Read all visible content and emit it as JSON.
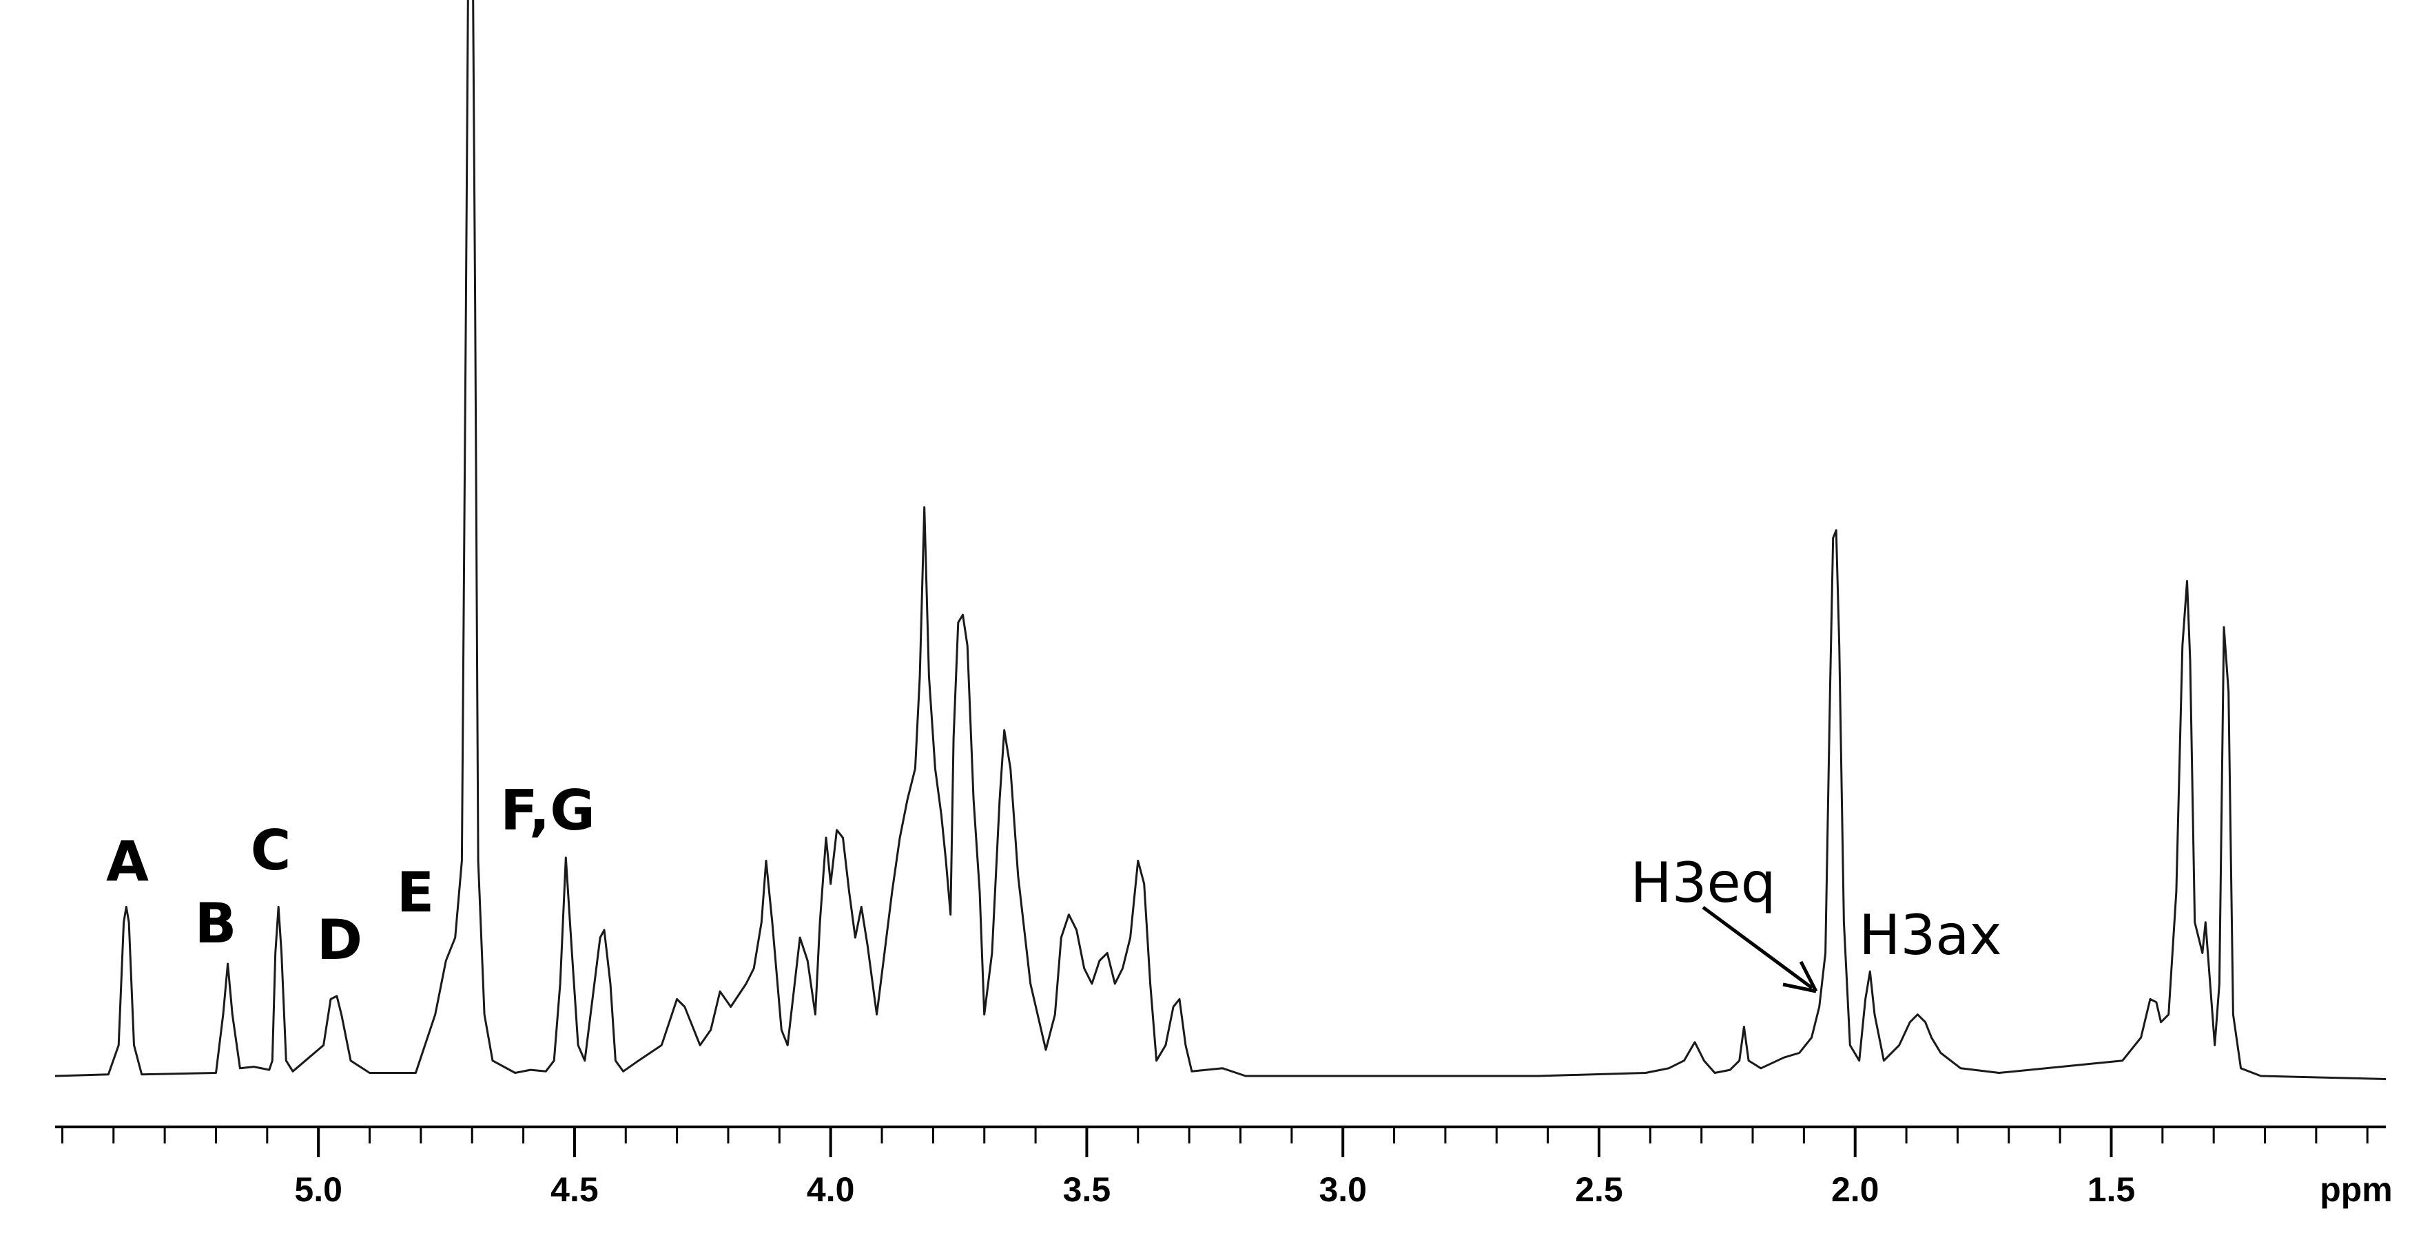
{
  "chart_data": {
    "type": "line",
    "x_label": "ppm",
    "xlim": [
      5.514,
      0.964
    ],
    "ylim": [
      0,
      700
    ],
    "xticks": [
      {
        "value": 5,
        "label": "5.0"
      },
      {
        "value": 4.5,
        "label": "4.5"
      },
      {
        "value": 4,
        "label": "4.0"
      },
      {
        "value": 3.5,
        "label": "3.5"
      },
      {
        "value": 3,
        "label": "3.0"
      },
      {
        "value": 2.5,
        "label": "2.5"
      },
      {
        "value": 2,
        "label": "2.0"
      },
      {
        "value": 1.5,
        "label": "1.5"
      }
    ],
    "xminorticks": [
      5.5,
      5.4,
      5.3,
      5.2,
      5.1,
      4.9,
      4.8,
      4.7,
      4.6,
      4.4,
      4.3,
      4.2,
      4.1,
      3.9,
      3.8,
      3.7,
      3.6,
      3.4,
      3.3,
      3.2,
      3.1,
      2.9,
      2.8,
      2.7,
      2.6,
      2.4,
      2.3,
      2.2,
      2.1,
      1.9,
      1.8,
      1.7,
      1.6,
      1.4,
      1.3,
      1.2,
      1.1,
      1.0
    ],
    "annotations": [
      "A",
      "B",
      "C",
      "D",
      "E",
      "F,G",
      "H3eq",
      "H3ax"
    ],
    "x": [
      5.514,
      5.41,
      5.39,
      5.38,
      5.375,
      5.37,
      5.36,
      5.345,
      5.2,
      5.186,
      5.177,
      5.168,
      5.153,
      5.126,
      5.096,
      5.09,
      5.084,
      5.078,
      5.072,
      5.063,
      5.05,
      4.99,
      4.976,
      4.964,
      4.955,
      4.937,
      4.9,
      4.81,
      4.772,
      4.751,
      4.733,
      4.72,
      4.712,
      4.706,
      4.7,
      4.694,
      4.688,
      4.676,
      4.66,
      4.616,
      4.586,
      4.556,
      4.54,
      4.528,
      4.517,
      4.505,
      4.493,
      4.48,
      4.45,
      4.442,
      4.43,
      4.42,
      4.405,
      4.375,
      4.33,
      4.3,
      4.285,
      4.255,
      4.234,
      4.216,
      4.195,
      4.165,
      4.15,
      4.135,
      4.126,
      4.114,
      4.096,
      4.084,
      4.06,
      4.045,
      4.03,
      4.021,
      4.009,
      4.0,
      3.988,
      3.976,
      3.964,
      3.952,
      3.94,
      3.928,
      3.91,
      3.895,
      3.88,
      3.865,
      3.85,
      3.835,
      3.826,
      3.817,
      3.808,
      3.796,
      3.784,
      3.775,
      3.766,
      3.76,
      3.751,
      3.742,
      3.733,
      3.721,
      3.709,
      3.7,
      3.685,
      3.67,
      3.661,
      3.649,
      3.634,
      3.61,
      3.58,
      3.562,
      3.55,
      3.535,
      3.52,
      3.505,
      3.49,
      3.475,
      3.46,
      3.445,
      3.43,
      3.415,
      3.4,
      3.388,
      3.376,
      3.364,
      3.346,
      3.331,
      3.319,
      3.307,
      3.295,
      3.235,
      3.19,
      3.085,
      2.619,
      2.409,
      2.364,
      2.334,
      2.313,
      2.295,
      2.274,
      2.244,
      2.226,
      2.217,
      2.208,
      2.184,
      2.139,
      2.109,
      2.085,
      2.07,
      2.058,
      2.049,
      2.043,
      2.037,
      2.031,
      2.022,
      2.01,
      1.992,
      1.98,
      1.971,
      1.962,
      1.944,
      1.914,
      1.893,
      1.878,
      1.863,
      1.851,
      1.833,
      1.794,
      1.719,
      1.478,
      1.442,
      1.424,
      1.412,
      1.403,
      1.388,
      1.373,
      1.361,
      1.352,
      1.346,
      1.337,
      1.322,
      1.316,
      1.307,
      1.298,
      1.289,
      1.28,
      1.271,
      1.262,
      1.247,
      1.208,
      0.964
    ],
    "series": [
      {
        "color": "#1a1a1a",
        "values": [
          0,
          1,
          20,
          100,
          110,
          100,
          20,
          1,
          2,
          40,
          73,
          40,
          5,
          6,
          4,
          10,
          80,
          110,
          80,
          10,
          3,
          20,
          50,
          52,
          40,
          10,
          2,
          2,
          40,
          75,
          90,
          140,
          500,
          800,
          800,
          500,
          140,
          40,
          10,
          2,
          4,
          3,
          10,
          60,
          142,
          80,
          20,
          10,
          90,
          95,
          60,
          10,
          3,
          10,
          20,
          50,
          45,
          20,
          30,
          55,
          45,
          60,
          70,
          100,
          140,
          100,
          30,
          20,
          90,
          75,
          40,
          100,
          155,
          125,
          160,
          155,
          120,
          90,
          110,
          85,
          40,
          80,
          120,
          155,
          180,
          200,
          260,
          370,
          260,
          200,
          170,
          140,
          105,
          220,
          295,
          300,
          280,
          180,
          120,
          40,
          80,
          180,
          225,
          200,
          130,
          60,
          17,
          40,
          90,
          105,
          95,
          70,
          60,
          75,
          80,
          60,
          70,
          90,
          140,
          125,
          60,
          10,
          20,
          45,
          50,
          20,
          3,
          5,
          0,
          0,
          0,
          2,
          5,
          10,
          22,
          10,
          2,
          4,
          10,
          32,
          10,
          5,
          12,
          15,
          25,
          45,
          80,
          250,
          350,
          355,
          280,
          100,
          20,
          10,
          50,
          68,
          40,
          10,
          20,
          35,
          40,
          35,
          25,
          15,
          5,
          2,
          10,
          25,
          50,
          48,
          35,
          40,
          120,
          280,
          322,
          270,
          100,
          80,
          100,
          60,
          20,
          60,
          292,
          250,
          40,
          5,
          0,
          -2
        ]
      }
    ]
  }
}
